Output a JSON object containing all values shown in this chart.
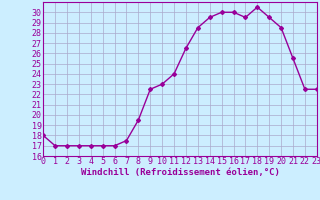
{
  "x": [
    0,
    1,
    2,
    3,
    4,
    5,
    6,
    7,
    8,
    9,
    10,
    11,
    12,
    13,
    14,
    15,
    16,
    17,
    18,
    19,
    20,
    21,
    22,
    23
  ],
  "y": [
    18,
    17,
    17,
    17,
    17,
    17,
    17,
    17.5,
    19.5,
    22.5,
    23,
    24,
    26.5,
    28.5,
    29.5,
    30,
    30,
    29.5,
    30.5,
    29.5,
    28.5,
    25.5,
    22.5,
    22.5
  ],
  "line_color": "#990099",
  "marker": "D",
  "marker_size": 2,
  "line_width": 1,
  "bg_color": "#cceeff",
  "grid_color": "#aaaacc",
  "xlabel": "Windchill (Refroidissement éolien,°C)",
  "xlim": [
    0,
    23
  ],
  "ylim": [
    16,
    31
  ],
  "yticks": [
    16,
    17,
    18,
    19,
    20,
    21,
    22,
    23,
    24,
    25,
    26,
    27,
    28,
    29,
    30
  ],
  "xticks": [
    0,
    1,
    2,
    3,
    4,
    5,
    6,
    7,
    8,
    9,
    10,
    11,
    12,
    13,
    14,
    15,
    16,
    17,
    18,
    19,
    20,
    21,
    22,
    23
  ],
  "tick_color": "#990099",
  "label_color": "#990099",
  "spine_color": "#990099",
  "tick_fontsize": 6,
  "xlabel_fontsize": 6.5
}
